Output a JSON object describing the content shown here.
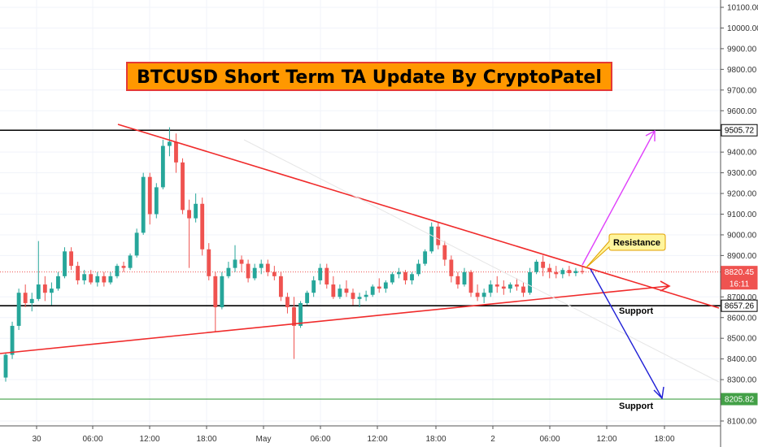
{
  "chart_data": {
    "type": "candlestick",
    "title": "BTCUSD Short Term TA Update By CryptoPatel",
    "ylim": [
      8050,
      10200
    ],
    "y_ticks": [
      "10100.00",
      "10000.00",
      "9900.00",
      "9800.00",
      "9700.00",
      "9600.00",
      "9400.00",
      "9300.00",
      "9200.00",
      "9100.00",
      "9000.00",
      "8900.00",
      "8700.00",
      "8600.00",
      "8500.00",
      "8400.00",
      "8300.00",
      "8100.00"
    ],
    "x_ticks": [
      "30",
      "06:00",
      "12:00",
      "18:00",
      "May",
      "06:00",
      "12:00",
      "18:00",
      "2",
      "06:00",
      "12:00",
      "18:00"
    ],
    "price_tags": [
      {
        "label": "9505.72",
        "value": 9505.72,
        "style": "black"
      },
      {
        "label": "8820.45",
        "value": 8820.45,
        "style": "red"
      },
      {
        "label": "16:11",
        "value": 8765,
        "style": "red"
      },
      {
        "label": "8657.26",
        "value": 8657.26,
        "style": "black"
      },
      {
        "label": "8205.82",
        "value": 8205.82,
        "style": "green"
      }
    ],
    "horizontal_lines": [
      {
        "value": 9505.72,
        "color": "#000000"
      },
      {
        "value": 8657.26,
        "color": "#000000"
      },
      {
        "value": 8205.82,
        "color": "#43a047"
      }
    ],
    "annotations": {
      "resistance": "Resistance",
      "support_upper": "Support",
      "support_lower": "Support"
    },
    "colors": {
      "up": "#26a69a",
      "down": "#ef5350",
      "trend": "#f02b2b",
      "bull_arrow": "#e040fb",
      "bear_arrow": "#1f1fd6"
    },
    "candles": [
      [
        8310,
        8430,
        8290,
        8420
      ],
      [
        8420,
        8580,
        8400,
        8560
      ],
      [
        8560,
        8740,
        8540,
        8720
      ],
      [
        8720,
        8760,
        8650,
        8670
      ],
      [
        8670,
        8720,
        8630,
        8690
      ],
      [
        8690,
        8970,
        8680,
        8760
      ],
      [
        8760,
        8800,
        8680,
        8720
      ],
      [
        8720,
        8770,
        8660,
        8740
      ],
      [
        8740,
        8820,
        8730,
        8800
      ],
      [
        8800,
        8940,
        8790,
        8920
      ],
      [
        8920,
        8940,
        8830,
        8850
      ],
      [
        8850,
        8870,
        8760,
        8780
      ],
      [
        8780,
        8830,
        8760,
        8810
      ],
      [
        8810,
        8830,
        8760,
        8770
      ],
      [
        8770,
        8820,
        8750,
        8800
      ],
      [
        8800,
        8820,
        8750,
        8770
      ],
      [
        8770,
        8820,
        8760,
        8800
      ],
      [
        8800,
        8860,
        8790,
        8850
      ],
      [
        8850,
        8870,
        8820,
        8840
      ],
      [
        8840,
        8910,
        8830,
        8900
      ],
      [
        8900,
        9030,
        8890,
        9010
      ],
      [
        9010,
        9300,
        9000,
        9280
      ],
      [
        9280,
        9300,
        9050,
        9100
      ],
      [
        9100,
        9250,
        9080,
        9230
      ],
      [
        9230,
        9460,
        9220,
        9430
      ],
      [
        9430,
        9520,
        9380,
        9450
      ],
      [
        9450,
        9490,
        9300,
        9350
      ],
      [
        9350,
        9370,
        9100,
        9120
      ],
      [
        9120,
        9170,
        8840,
        9080
      ],
      [
        9080,
        9200,
        9060,
        9150
      ],
      [
        9150,
        9180,
        8900,
        8930
      ],
      [
        8930,
        8960,
        8780,
        8800
      ],
      [
        8800,
        8820,
        8530,
        8650
      ],
      [
        8650,
        8820,
        8640,
        8800
      ],
      [
        8800,
        8870,
        8790,
        8840
      ],
      [
        8840,
        8950,
        8820,
        8880
      ],
      [
        8880,
        8900,
        8820,
        8860
      ],
      [
        8860,
        8880,
        8770,
        8790
      ],
      [
        8790,
        8860,
        8780,
        8840
      ],
      [
        8840,
        8880,
        8810,
        8860
      ],
      [
        8860,
        8880,
        8800,
        8820
      ],
      [
        8820,
        8850,
        8780,
        8800
      ],
      [
        8800,
        8820,
        8680,
        8700
      ],
      [
        8700,
        8720,
        8620,
        8650
      ],
      [
        8650,
        8700,
        8400,
        8560
      ],
      [
        8560,
        8680,
        8550,
        8670
      ],
      [
        8670,
        8730,
        8660,
        8720
      ],
      [
        8720,
        8800,
        8700,
        8780
      ],
      [
        8780,
        8860,
        8760,
        8840
      ],
      [
        8840,
        8860,
        8740,
        8760
      ],
      [
        8760,
        8800,
        8690,
        8700
      ],
      [
        8700,
        8760,
        8690,
        8740
      ],
      [
        8740,
        8780,
        8700,
        8720
      ],
      [
        8720,
        8740,
        8660,
        8690
      ],
      [
        8690,
        8720,
        8650,
        8700
      ],
      [
        8700,
        8730,
        8680,
        8710
      ],
      [
        8710,
        8760,
        8700,
        8750
      ],
      [
        8750,
        8790,
        8720,
        8740
      ],
      [
        8740,
        8780,
        8720,
        8770
      ],
      [
        8770,
        8820,
        8760,
        8810
      ],
      [
        8810,
        8840,
        8790,
        8820
      ],
      [
        8820,
        8830,
        8760,
        8780
      ],
      [
        8780,
        8820,
        8760,
        8810
      ],
      [
        8810,
        8880,
        8800,
        8860
      ],
      [
        8860,
        8930,
        8850,
        8920
      ],
      [
        8920,
        9060,
        8910,
        9040
      ],
      [
        9040,
        9060,
        8930,
        8950
      ],
      [
        8950,
        8970,
        8850,
        8880
      ],
      [
        8880,
        8900,
        8770,
        8800
      ],
      [
        8800,
        8820,
        8740,
        8760
      ],
      [
        8760,
        8840,
        8750,
        8820
      ],
      [
        8820,
        8830,
        8700,
        8720
      ],
      [
        8720,
        8760,
        8680,
        8700
      ],
      [
        8700,
        8740,
        8670,
        8720
      ],
      [
        8720,
        8780,
        8700,
        8760
      ],
      [
        8760,
        8800,
        8720,
        8750
      ],
      [
        8750,
        8780,
        8710,
        8740
      ],
      [
        8740,
        8770,
        8720,
        8760
      ],
      [
        8760,
        8790,
        8730,
        8750
      ],
      [
        8750,
        8770,
        8700,
        8720
      ],
      [
        8720,
        8840,
        8710,
        8820
      ],
      [
        8820,
        8880,
        8810,
        8870
      ],
      [
        8870,
        8900,
        8800,
        8840
      ],
      [
        8840,
        8860,
        8790,
        8820
      ],
      [
        8820,
        8850,
        8790,
        8810
      ],
      [
        8810,
        8840,
        8790,
        8830
      ],
      [
        8830,
        8850,
        8800,
        8815
      ],
      [
        8815,
        8840,
        8800,
        8825
      ],
      [
        8825,
        8850,
        8810,
        8820
      ]
    ]
  }
}
